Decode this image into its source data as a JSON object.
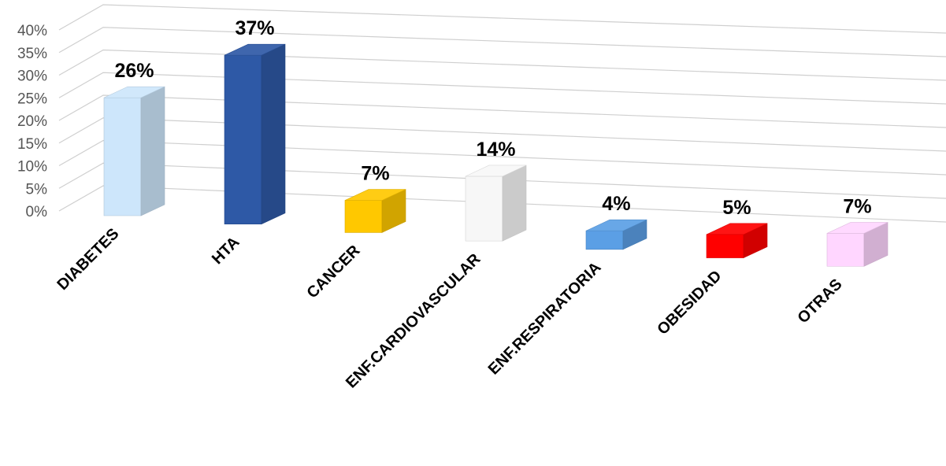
{
  "chart_data": {
    "type": "bar",
    "title": "",
    "xlabel": "",
    "ylabel": "",
    "ylim": [
      0,
      40
    ],
    "yticks": [
      "0%",
      "5%",
      "10%",
      "15%",
      "20%",
      "25%",
      "30%",
      "35%",
      "40%"
    ],
    "grid": true,
    "categories": [
      "DIABETES",
      "HTA",
      "CANCER",
      "ENF.CARDIOVASCULAR",
      "ENF.RESPIRATORIA",
      "OBESIDAD",
      "OTRAS"
    ],
    "values": [
      26,
      37,
      7,
      14,
      4,
      5,
      7
    ],
    "labels": [
      "26%",
      "37%",
      "7%",
      "14%",
      "4%",
      "5%",
      "7%"
    ],
    "colors": [
      "#cde6fb",
      "#2e59a6",
      "#ffc800",
      "#f7f7f7",
      "#5b9fe5",
      "#ff0000",
      "#ffd6ff"
    ]
  }
}
